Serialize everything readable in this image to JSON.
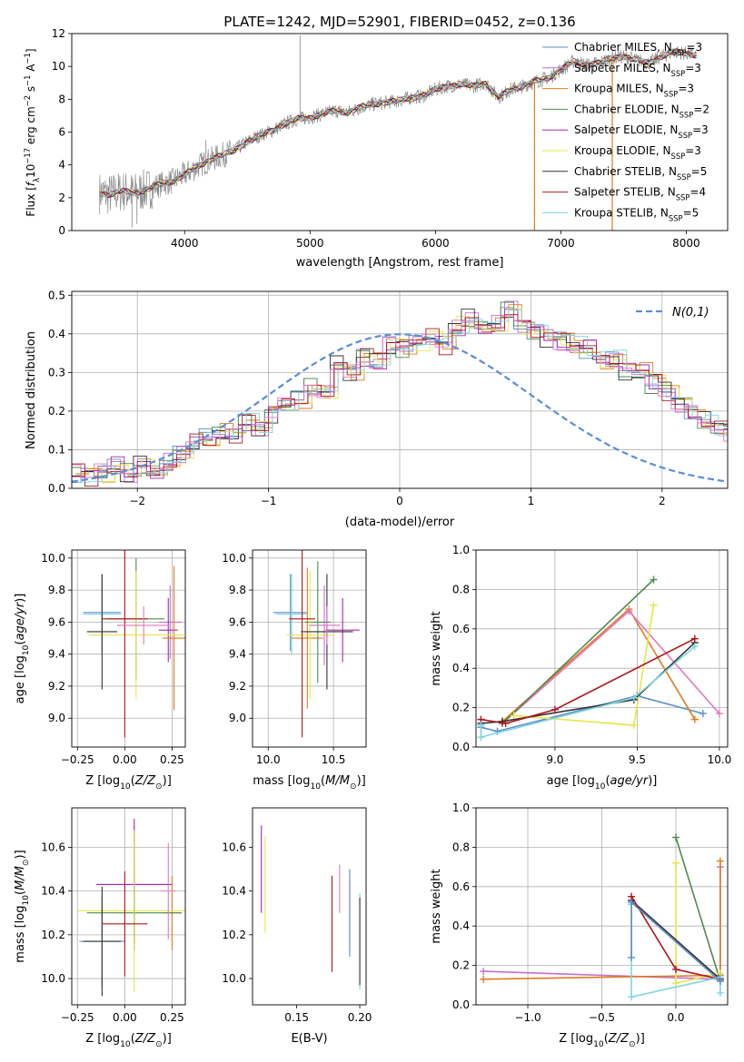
{
  "figure": {
    "title": "PLATE=1242, MJD=52901, FIBERID=0452, z=0.136"
  },
  "colors": {
    "Chabrier MILES": "#5b8ec9",
    "Salpeter MILES": "#c46fd0",
    "Kroupa MILES": "#e07b1d",
    "Chabrier ELODIE": "#4f8a4f",
    "Salpeter ELODIE": "#a52aa8",
    "Kroupa ELODIE": "#e6e64a",
    "Chabrier STELIB": "#333333",
    "Salpeter STELIB": "#b0141c",
    "Kroupa STELIB": "#7fd6e0",
    "data": "#808080",
    "pink": "#e377c2",
    "normal": "#5b8ed6"
  },
  "chart_data": [
    {
      "id": "spectrum",
      "type": "line",
      "xlabel": "wavelength [Angstrom, rest frame]",
      "ylabel": "Flux [f_λ 10^-17 erg cm^-2 s^-1 A^-1]",
      "xlim": [
        3100,
        8330
      ],
      "ylim": [
        0,
        12
      ],
      "xticks": [
        4000,
        5000,
        6000,
        7000,
        8000
      ],
      "yticks": [
        0,
        2,
        4,
        6,
        8,
        10,
        12
      ],
      "grid": false,
      "legend_position": "top-right",
      "legend": [
        {
          "key": "Chabrier MILES",
          "text": "Chabrier MILES, N",
          "sub": "SSP",
          "tail": "=3"
        },
        {
          "key": "Salpeter MILES",
          "text": "Salpeter MILES, N",
          "sub": "SSP",
          "tail": "=3"
        },
        {
          "key": "Kroupa MILES",
          "text": "Kroupa MILES, N",
          "sub": "SSP",
          "tail": "=3"
        },
        {
          "key": "Chabrier ELODIE",
          "text": "Chabrier ELODIE, N",
          "sub": "SSP",
          "tail": "=2"
        },
        {
          "key": "Salpeter ELODIE",
          "text": "Salpeter ELODIE, N",
          "sub": "SSP",
          "tail": "=3"
        },
        {
          "key": "Kroupa ELODIE",
          "text": "Kroupa ELODIE, N",
          "sub": "SSP",
          "tail": "=3"
        },
        {
          "key": "Chabrier STELIB",
          "text": "Chabrier STELIB, N",
          "sub": "SSP",
          "tail": "=5"
        },
        {
          "key": "Salpeter STELIB",
          "text": "Salpeter STELIB, N",
          "sub": "SSP",
          "tail": "=4"
        },
        {
          "key": "Kroupa STELIB",
          "text": "Kroupa STELIB, N",
          "sub": "SSP",
          "tail": "=5"
        }
      ],
      "model_x": [
        3320,
        3400,
        3500,
        3600,
        3700,
        3800,
        3900,
        4000,
        4100,
        4200,
        4300,
        4400,
        4500,
        4600,
        4700,
        4800,
        4900,
        5000,
        5100,
        5200,
        5300,
        5400,
        5500,
        5600,
        5700,
        5800,
        5900,
        6000,
        6100,
        6200,
        6300,
        6400,
        6500,
        6600,
        6700,
        6800,
        6900,
        7000,
        7100,
        7200,
        7300,
        7400,
        7500,
        7600,
        7700,
        7800,
        7900,
        8000,
        8080
      ],
      "model_y": [
        2.3,
        2.2,
        2.4,
        2.3,
        2.5,
        2.8,
        3.0,
        3.4,
        3.9,
        4.3,
        4.6,
        4.9,
        5.4,
        5.8,
        6.1,
        6.5,
        6.8,
        6.9,
        7.1,
        7.3,
        7.2,
        7.5,
        7.7,
        7.8,
        7.9,
        8.1,
        8.2,
        8.6,
        8.8,
        8.9,
        8.8,
        9.0,
        8.1,
        8.6,
        8.8,
        9.1,
        9.3,
        9.8,
        10.3,
        10.1,
        10.2,
        10.5,
        10.6,
        10.4,
        10.2,
        10.6,
        10.9,
        10.8,
        10.7
      ],
      "data_spikes": [
        {
          "x": 4920,
          "y": 11.9
        },
        {
          "x": 3580,
          "y": 0.2
        },
        {
          "x": 3620,
          "y": 0.4
        },
        {
          "x": 4170,
          "y": 5.5
        }
      ],
      "drops": [
        {
          "key": "Kroupa MILES",
          "x": 6790
        },
        {
          "key": "Kroupa MILES",
          "x": 7410
        }
      ]
    },
    {
      "id": "residuals",
      "type": "line",
      "xlabel": "(data-model)/error",
      "ylabel": "Normed distribution",
      "xlim": [
        -2.5,
        2.5
      ],
      "ylim": [
        0,
        0.51
      ],
      "xticks": [
        -2,
        -1,
        0,
        1,
        2
      ],
      "yticks": [
        0.0,
        0.1,
        0.2,
        0.3,
        0.4,
        0.5
      ],
      "grid": true,
      "legend_position": "top-right",
      "legend_label": "N(0,1)",
      "bin_width": 0.1,
      "bin_start": -2.5,
      "hist_heights": [
        0.04,
        0.03,
        0.04,
        0.06,
        0.04,
        0.06,
        0.05,
        0.07,
        0.09,
        0.12,
        0.13,
        0.15,
        0.14,
        0.17,
        0.16,
        0.19,
        0.22,
        0.23,
        0.26,
        0.25,
        0.32,
        0.3,
        0.34,
        0.33,
        0.37,
        0.36,
        0.38,
        0.39,
        0.37,
        0.42,
        0.44,
        0.41,
        0.43,
        0.46,
        0.42,
        0.4,
        0.39,
        0.38,
        0.37,
        0.36,
        0.33,
        0.34,
        0.3,
        0.31,
        0.27,
        0.25,
        0.22,
        0.2,
        0.18,
        0.16,
        0.14,
        0.12,
        0.11,
        0.09,
        0.1,
        0.08,
        0.07,
        0.06,
        0.05,
        0.04
      ]
    },
    {
      "id": "age-vs-Z",
      "type": "scatter",
      "xlabel": "Z [log10(Z/Z⊙)]",
      "ylabel": "age [log10(age/yr)]",
      "xlim": [
        -0.28,
        0.32
      ],
      "ylim": [
        8.82,
        10.05
      ],
      "xticks": [
        -0.25,
        0.0,
        0.25
      ],
      "yticks": [
        9.0,
        9.2,
        9.4,
        9.6,
        9.8,
        10.0
      ],
      "grid": true,
      "points": [
        {
          "key": "Chabrier MILES",
          "x": -0.12,
          "y": 9.66,
          "xerr": 0.1,
          "yerr": 0.24
        },
        {
          "key": "Kroupa STELIB",
          "x": -0.12,
          "y": 9.65,
          "xerr": 0.1,
          "yerr": 0.25
        },
        {
          "key": "Salpeter MILES",
          "x": 0.24,
          "y": 9.6,
          "xerr": 0.06,
          "yerr": 0.23
        },
        {
          "key": "Salpeter ELODIE",
          "x": 0.23,
          "y": 9.55,
          "xerr": 0.05,
          "yerr": 0.2
        },
        {
          "key": "Kroupa MILES",
          "x": 0.26,
          "y": 9.5,
          "xerr": 0.06,
          "yerr": 0.45
        },
        {
          "key": "Chabrier ELODIE",
          "x": 0.06,
          "y": 9.62,
          "xerr": 0.15,
          "yerr": 0.38
        },
        {
          "key": "Kroupa ELODIE",
          "x": 0.06,
          "y": 9.52,
          "xerr": 0.25,
          "yerr": 0.4
        },
        {
          "key": "Chabrier STELIB",
          "x": -0.12,
          "y": 9.54,
          "xerr": 0.08,
          "yerr": 0.36
        },
        {
          "key": "Salpeter STELIB",
          "x": 0.0,
          "y": 9.62,
          "xerr": 0.12,
          "yerr": 0.74
        },
        {
          "key": "pink",
          "x": 0.1,
          "y": 9.58,
          "xerr": 0.14,
          "yerr": 0.12
        }
      ]
    },
    {
      "id": "age-vs-mass",
      "type": "scatter",
      "xlabel": "mass [log10(M/M⊙)]",
      "ylabel": "",
      "xlim": [
        9.88,
        10.75
      ],
      "ylim": [
        8.82,
        10.05
      ],
      "xticks": [
        10.0,
        10.5
      ],
      "yticks": [
        9.0,
        9.2,
        9.4,
        9.6,
        9.8,
        10.0
      ],
      "grid": true,
      "points": [
        {
          "key": "Chabrier MILES",
          "x": 10.17,
          "y": 9.66,
          "xerr": 0.13,
          "yerr": 0.24
        },
        {
          "key": "Kroupa STELIB",
          "x": 10.18,
          "y": 9.65,
          "xerr": 0.12,
          "yerr": 0.25
        },
        {
          "key": "Salpeter MILES",
          "x": 10.43,
          "y": 9.58,
          "xerr": 0.12,
          "yerr": 0.25
        },
        {
          "key": "Salpeter ELODIE",
          "x": 10.57,
          "y": 9.55,
          "xerr": 0.13,
          "yerr": 0.2
        },
        {
          "key": "Kroupa MILES",
          "x": 10.3,
          "y": 9.5,
          "xerr": 0.12,
          "yerr": 0.44
        },
        {
          "key": "Chabrier ELODIE",
          "x": 10.38,
          "y": 9.6,
          "xerr": 0.1,
          "yerr": 0.38
        },
        {
          "key": "Kroupa ELODIE",
          "x": 10.32,
          "y": 9.52,
          "xerr": 0.18,
          "yerr": 0.4
        },
        {
          "key": "Chabrier STELIB",
          "x": 10.45,
          "y": 9.54,
          "xerr": 0.2,
          "yerr": 0.36
        },
        {
          "key": "Salpeter STELIB",
          "x": 10.26,
          "y": 9.62,
          "xerr": 0.1,
          "yerr": 0.74
        },
        {
          "key": "pink",
          "x": 10.45,
          "y": 9.58,
          "xerr": 0.1,
          "yerr": 0.12
        }
      ]
    },
    {
      "id": "massweight-vs-age",
      "type": "line",
      "xlabel": "age [log10(age/yr)]",
      "ylabel": "mass weight",
      "xlim": [
        8.52,
        10.05
      ],
      "ylim": [
        0,
        1
      ],
      "xticks": [
        9.0,
        9.5,
        10.0
      ],
      "yticks": [
        0.0,
        0.2,
        0.4,
        0.6,
        0.8,
        1.0
      ],
      "grid": true,
      "series": [
        {
          "key": "Chabrier MILES",
          "x": [
            8.55,
            8.65,
            9.5,
            9.9
          ],
          "y": [
            0.1,
            0.08,
            0.26,
            0.17
          ]
        },
        {
          "key": "Kroupa MILES",
          "x": [
            8.68,
            9.45,
            9.85
          ],
          "y": [
            0.13,
            0.7,
            0.14
          ]
        },
        {
          "key": "pink",
          "x": [
            8.68,
            9.45,
            10.0
          ],
          "y": [
            0.12,
            0.69,
            0.17
          ]
        },
        {
          "key": "Chabrier ELODIE",
          "x": [
            8.68,
            9.6
          ],
          "y": [
            0.12,
            0.85
          ]
        },
        {
          "key": "Kroupa ELODIE",
          "x": [
            8.75,
            9.48,
            9.6
          ],
          "y": [
            0.16,
            0.11,
            0.72
          ]
        },
        {
          "key": "Chabrier STELIB",
          "x": [
            8.55,
            8.68,
            9.48,
            9.85
          ],
          "y": [
            0.12,
            0.13,
            0.24,
            0.53
          ]
        },
        {
          "key": "Salpeter STELIB",
          "x": [
            8.55,
            8.7,
            9.0,
            9.85
          ],
          "y": [
            0.14,
            0.12,
            0.19,
            0.55
          ]
        },
        {
          "key": "Kroupa STELIB",
          "x": [
            8.55,
            8.55,
            9.48,
            9.85
          ],
          "y": [
            0.11,
            0.05,
            0.25,
            0.51
          ]
        }
      ]
    },
    {
      "id": "mass-vs-Z",
      "type": "scatter",
      "xlabel": "Z [log10(Z/Z⊙)]",
      "ylabel": "mass [log10(M/M⊙)]",
      "xlim": [
        -0.28,
        0.32
      ],
      "ylim": [
        9.88,
        10.78
      ],
      "xticks": [
        -0.25,
        0.0,
        0.25
      ],
      "yticks": [
        10.0,
        10.2,
        10.4,
        10.6
      ],
      "grid": true,
      "points": [
        {
          "key": "Chabrier MILES",
          "x": -0.12,
          "y": 10.17,
          "xerr": 0.12,
          "yerr": 0.2
        },
        {
          "key": "Kroupa STELIB",
          "x": -0.12,
          "y": 10.17,
          "xerr": 0.1,
          "yerr": 0.22
        },
        {
          "key": "Salpeter MILES",
          "x": 0.05,
          "y": 10.43,
          "xerr": 0.2,
          "yerr": 0.27
        },
        {
          "key": "Salpeter ELODIE",
          "x": 0.05,
          "y": 10.43,
          "xerr": 0.2,
          "yerr": 0.3
        },
        {
          "key": "Kroupa MILES",
          "x": 0.25,
          "y": 10.3,
          "xerr": 0.05,
          "yerr": 0.17
        },
        {
          "key": "Chabrier ELODIE",
          "x": 0.05,
          "y": 10.3,
          "xerr": 0.25,
          "yerr": 0.12
        },
        {
          "key": "Kroupa ELODIE",
          "x": 0.05,
          "y": 10.31,
          "xerr": 0.3,
          "yerr": 0.37
        },
        {
          "key": "Chabrier STELIB",
          "x": -0.12,
          "y": 10.17,
          "xerr": 0.1,
          "yerr": 0.25
        },
        {
          "key": "Salpeter STELIB",
          "x": 0.0,
          "y": 10.25,
          "xerr": 0.12,
          "yerr": 0.24
        },
        {
          "key": "pink",
          "x": 0.23,
          "y": 10.4,
          "xerr": 0.04,
          "yerr": 0.22
        }
      ]
    },
    {
      "id": "mass-vs-EBV",
      "type": "scatter",
      "xlabel": "E(B-V)",
      "ylabel": "",
      "xlim": [
        0.115,
        0.205
      ],
      "ylim": [
        9.88,
        10.78
      ],
      "xticks": [
        0.15,
        0.2
      ],
      "yticks": [
        10.0,
        10.2,
        10.4,
        10.6
      ],
      "grid": false,
      "points": [
        {
          "key": "Salpeter ELODIE",
          "x": 0.122,
          "y": 10.5,
          "xerr": 0.0,
          "yerr": 0.2
        },
        {
          "key": "Kroupa ELODIE",
          "x": 0.125,
          "y": 10.43,
          "xerr": 0.0,
          "yerr": 0.22
        },
        {
          "key": "Salpeter STELIB",
          "x": 0.178,
          "y": 10.25,
          "xerr": 0.0,
          "yerr": 0.22
        },
        {
          "key": "pink",
          "x": 0.184,
          "y": 10.41,
          "xerr": 0.0,
          "yerr": 0.11
        },
        {
          "key": "Kroupa MILES",
          "x": 0.192,
          "y": 10.3,
          "xerr": 0.0,
          "yerr": 0.17
        },
        {
          "key": "Chabrier MILES",
          "x": 0.192,
          "y": 10.3,
          "xerr": 0.0,
          "yerr": 0.2
        },
        {
          "key": "Kroupa STELIB",
          "x": 0.2,
          "y": 10.17,
          "xerr": 0.0,
          "yerr": 0.22
        },
        {
          "key": "Chabrier STELIB",
          "x": 0.2,
          "y": 10.17,
          "xerr": 0.0,
          "yerr": 0.2
        }
      ]
    },
    {
      "id": "massweight-vs-Z",
      "type": "line",
      "xlabel": "Z [log10(Z/Z⊙)]",
      "ylabel": "mass weight",
      "xlim": [
        -1.35,
        0.35
      ],
      "ylim": [
        0,
        1
      ],
      "xticks": [
        -1.0,
        -0.5,
        0.0
      ],
      "yticks": [
        0.0,
        0.2,
        0.4,
        0.6,
        0.8,
        1.0
      ],
      "grid": true,
      "series": [
        {
          "key": "Salpeter MILES",
          "x": [
            -1.3,
            0.3,
            0.3
          ],
          "y": [
            0.17,
            0.13,
            0.7
          ]
        },
        {
          "key": "Kroupa MILES",
          "x": [
            -1.3,
            0.3,
            0.3
          ],
          "y": [
            0.13,
            0.15,
            0.73
          ]
        },
        {
          "key": "Chabrier ELODIE",
          "x": [
            0.0,
            0.3
          ],
          "y": [
            0.85,
            0.12
          ]
        },
        {
          "key": "Kroupa ELODIE",
          "x": [
            0.0,
            0.0,
            0.3
          ],
          "y": [
            0.72,
            0.11,
            0.16
          ]
        },
        {
          "key": "Chabrier STELIB",
          "x": [
            -0.3,
            0.3
          ],
          "y": [
            0.53,
            0.13
          ]
        },
        {
          "key": "Salpeter STELIB",
          "x": [
            -0.3,
            0.0,
            0.3
          ],
          "y": [
            0.55,
            0.18,
            0.13
          ]
        },
        {
          "key": "Kroupa STELIB",
          "x": [
            -0.3,
            -0.3,
            0.3,
            0.3
          ],
          "y": [
            0.51,
            0.04,
            0.14,
            0.06
          ]
        },
        {
          "key": "Chabrier MILES",
          "x": [
            -0.3,
            -0.3,
            0.3
          ],
          "y": [
            0.24,
            0.52,
            0.12
          ]
        }
      ]
    }
  ]
}
